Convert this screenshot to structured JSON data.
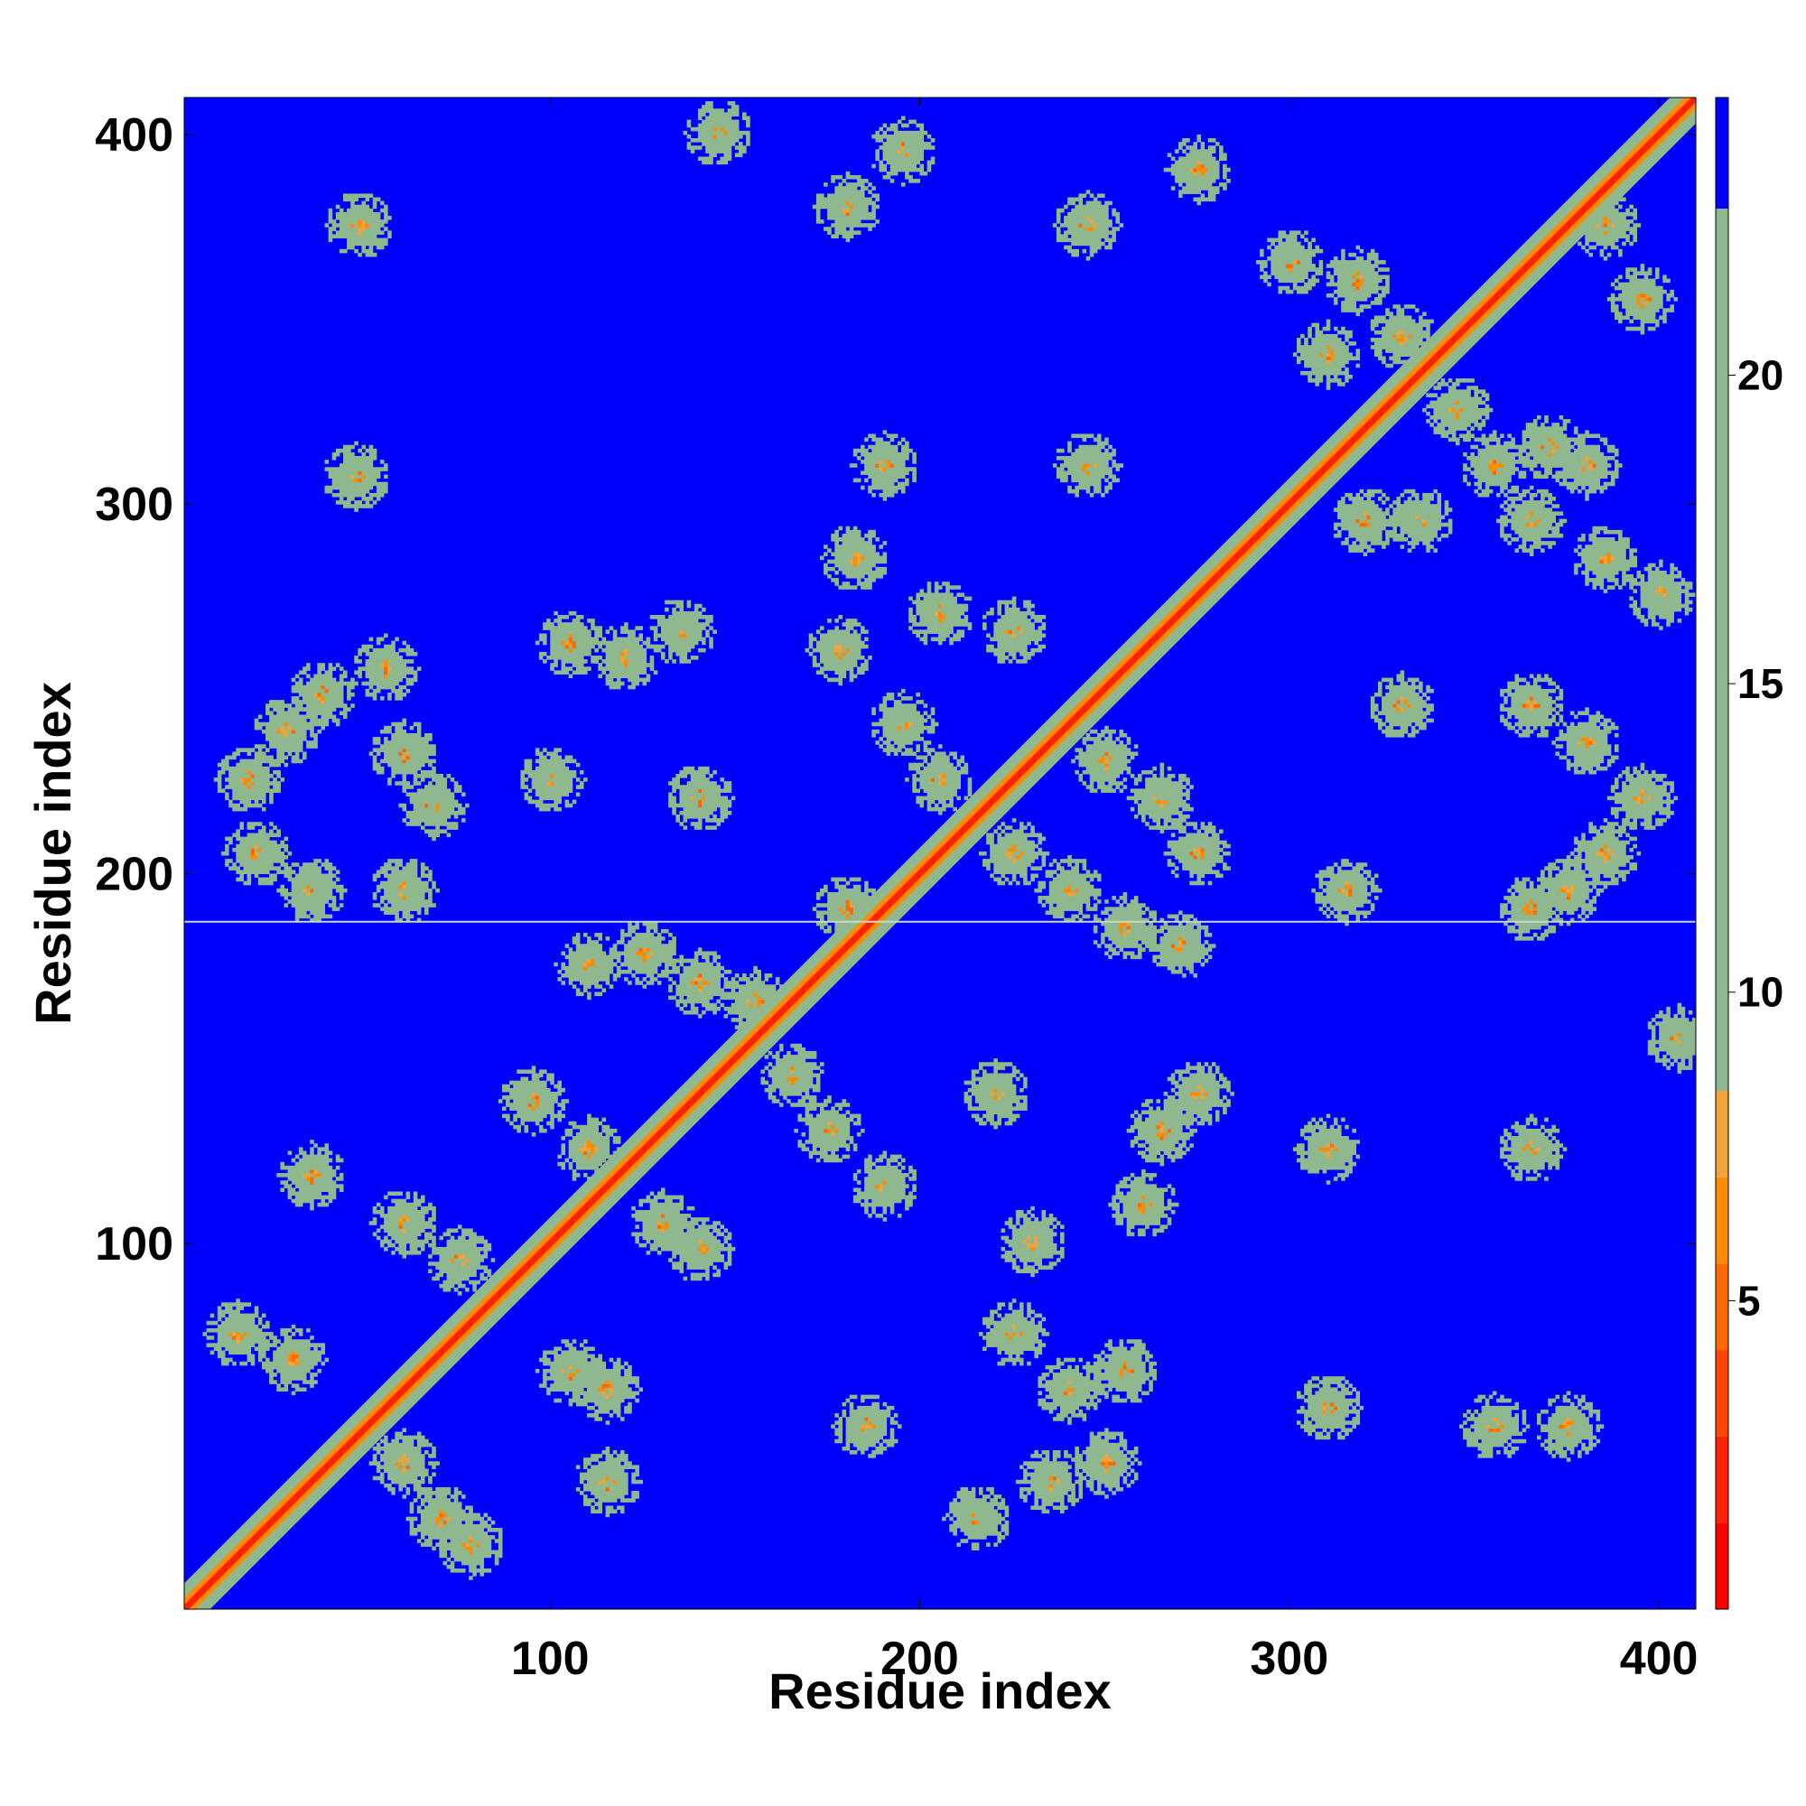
{
  "chart_data": {
    "type": "heatmap",
    "title": "",
    "xlabel": "Residue index",
    "ylabel": "Residue index",
    "xlim": [
      1,
      410
    ],
    "ylim": [
      1,
      410
    ],
    "x_ticks": [
      100,
      200,
      300,
      400
    ],
    "y_ticks": [
      100,
      200,
      300,
      400
    ],
    "colorbar": {
      "min": 0,
      "max": 24.5,
      "ticks": [
        5,
        10,
        15,
        20
      ],
      "bands": [
        {
          "from": 0,
          "to": 1.4,
          "color": "#ff0000"
        },
        {
          "from": 1.4,
          "to": 2.8,
          "color": "#ff2200"
        },
        {
          "from": 2.8,
          "to": 4.2,
          "color": "#ff4500"
        },
        {
          "from": 4.2,
          "to": 5.6,
          "color": "#ff6a00"
        },
        {
          "from": 5.6,
          "to": 7.0,
          "color": "#ff8c00"
        },
        {
          "from": 7.0,
          "to": 8.4,
          "color": "#f2a33a"
        },
        {
          "from": 8.4,
          "to": 22.7,
          "color": "#8fb88f"
        },
        {
          "from": 22.7,
          "to": 24.5,
          "color": "#0000ff"
        }
      ]
    },
    "background_value": 24,
    "background_color": "#0000ff",
    "diagonal": {
      "from": 1,
      "to": 410,
      "core_value": 1.5,
      "halo_value": 10
    },
    "contact_regions": [
      {
        "x": 18,
        "y": 225,
        "value": 12
      },
      {
        "x": 28,
        "y": 238,
        "value": 12
      },
      {
        "x": 38,
        "y": 248,
        "value": 12
      },
      {
        "x": 55,
        "y": 255,
        "value": 12
      },
      {
        "x": 60,
        "y": 232,
        "value": 12
      },
      {
        "x": 68,
        "y": 218,
        "value": 12
      },
      {
        "x": 20,
        "y": 205,
        "value": 13
      },
      {
        "x": 35,
        "y": 195,
        "value": 13
      },
      {
        "x": 60,
        "y": 195,
        "value": 13
      },
      {
        "x": 48,
        "y": 375,
        "value": 16
      },
      {
        "x": 47,
        "y": 307,
        "value": 16
      },
      {
        "x": 105,
        "y": 262,
        "value": 12
      },
      {
        "x": 120,
        "y": 258,
        "value": 12
      },
      {
        "x": 135,
        "y": 265,
        "value": 12
      },
      {
        "x": 100,
        "y": 225,
        "value": 13
      },
      {
        "x": 140,
        "y": 220,
        "value": 14
      },
      {
        "x": 125,
        "y": 178,
        "value": 12
      },
      {
        "x": 140,
        "y": 170,
        "value": 12
      },
      {
        "x": 110,
        "y": 175,
        "value": 13
      },
      {
        "x": 95,
        "y": 138,
        "value": 12
      },
      {
        "x": 110,
        "y": 125,
        "value": 12
      },
      {
        "x": 130,
        "y": 105,
        "value": 12
      },
      {
        "x": 140,
        "y": 98,
        "value": 13
      },
      {
        "x": 60,
        "y": 105,
        "value": 13
      },
      {
        "x": 75,
        "y": 95,
        "value": 13
      },
      {
        "x": 105,
        "y": 65,
        "value": 12
      },
      {
        "x": 115,
        "y": 60,
        "value": 13
      },
      {
        "x": 15,
        "y": 75,
        "value": 12
      },
      {
        "x": 30,
        "y": 68,
        "value": 12
      },
      {
        "x": 60,
        "y": 40,
        "value": 12
      },
      {
        "x": 70,
        "y": 25,
        "value": 12
      },
      {
        "x": 78,
        "y": 18,
        "value": 13
      },
      {
        "x": 35,
        "y": 118,
        "value": 14
      },
      {
        "x": 115,
        "y": 35,
        "value": 14
      },
      {
        "x": 180,
        "y": 380,
        "value": 12
      },
      {
        "x": 195,
        "y": 395,
        "value": 13
      },
      {
        "x": 145,
        "y": 400,
        "value": 15
      },
      {
        "x": 245,
        "y": 375,
        "value": 14
      },
      {
        "x": 275,
        "y": 390,
        "value": 13
      },
      {
        "x": 190,
        "y": 310,
        "value": 15
      },
      {
        "x": 245,
        "y": 310,
        "value": 16
      },
      {
        "x": 182,
        "y": 285,
        "value": 12
      },
      {
        "x": 178,
        "y": 260,
        "value": 12
      },
      {
        "x": 195,
        "y": 240,
        "value": 12
      },
      {
        "x": 205,
        "y": 270,
        "value": 13
      },
      {
        "x": 225,
        "y": 265,
        "value": 12
      },
      {
        "x": 205,
        "y": 225,
        "value": 12
      },
      {
        "x": 225,
        "y": 205,
        "value": 12
      },
      {
        "x": 240,
        "y": 195,
        "value": 12
      },
      {
        "x": 255,
        "y": 185,
        "value": 12
      },
      {
        "x": 270,
        "y": 180,
        "value": 13
      },
      {
        "x": 275,
        "y": 205,
        "value": 13
      },
      {
        "x": 250,
        "y": 230,
        "value": 13
      },
      {
        "x": 265,
        "y": 220,
        "value": 13
      },
      {
        "x": 180,
        "y": 190,
        "value": 13
      },
      {
        "x": 175,
        "y": 130,
        "value": 12
      },
      {
        "x": 165,
        "y": 145,
        "value": 12
      },
      {
        "x": 155,
        "y": 165,
        "value": 12
      },
      {
        "x": 190,
        "y": 115,
        "value": 14
      },
      {
        "x": 220,
        "y": 140,
        "value": 15
      },
      {
        "x": 230,
        "y": 100,
        "value": 13
      },
      {
        "x": 260,
        "y": 110,
        "value": 12
      },
      {
        "x": 265,
        "y": 130,
        "value": 12
      },
      {
        "x": 275,
        "y": 140,
        "value": 13
      },
      {
        "x": 310,
        "y": 125,
        "value": 15
      },
      {
        "x": 185,
        "y": 50,
        "value": 14
      },
      {
        "x": 225,
        "y": 75,
        "value": 12
      },
      {
        "x": 240,
        "y": 60,
        "value": 12
      },
      {
        "x": 255,
        "y": 65,
        "value": 13
      },
      {
        "x": 215,
        "y": 25,
        "value": 12
      },
      {
        "x": 235,
        "y": 35,
        "value": 12
      },
      {
        "x": 250,
        "y": 40,
        "value": 13
      },
      {
        "x": 310,
        "y": 55,
        "value": 14
      },
      {
        "x": 355,
        "y": 50,
        "value": 15
      },
      {
        "x": 375,
        "y": 50,
        "value": 15
      },
      {
        "x": 300,
        "y": 365,
        "value": 13
      },
      {
        "x": 318,
        "y": 360,
        "value": 13
      },
      {
        "x": 310,
        "y": 340,
        "value": 14
      },
      {
        "x": 330,
        "y": 345,
        "value": 13
      },
      {
        "x": 345,
        "y": 325,
        "value": 13
      },
      {
        "x": 355,
        "y": 310,
        "value": 13
      },
      {
        "x": 370,
        "y": 315,
        "value": 13
      },
      {
        "x": 380,
        "y": 310,
        "value": 13
      },
      {
        "x": 320,
        "y": 295,
        "value": 13
      },
      {
        "x": 335,
        "y": 295,
        "value": 13
      },
      {
        "x": 365,
        "y": 295,
        "value": 13
      },
      {
        "x": 385,
        "y": 285,
        "value": 13
      },
      {
        "x": 400,
        "y": 275,
        "value": 13
      },
      {
        "x": 380,
        "y": 235,
        "value": 14
      },
      {
        "x": 395,
        "y": 220,
        "value": 14
      },
      {
        "x": 385,
        "y": 205,
        "value": 13
      },
      {
        "x": 375,
        "y": 195,
        "value": 13
      },
      {
        "x": 365,
        "y": 190,
        "value": 14
      },
      {
        "x": 405,
        "y": 155,
        "value": 14
      },
      {
        "x": 315,
        "y": 195,
        "value": 15
      },
      {
        "x": 365,
        "y": 125,
        "value": 16
      },
      {
        "x": 330,
        "y": 245,
        "value": 15
      },
      {
        "x": 365,
        "y": 245,
        "value": 15
      },
      {
        "x": 385,
        "y": 375,
        "value": 13
      },
      {
        "x": 395,
        "y": 355,
        "value": 13
      }
    ]
  }
}
